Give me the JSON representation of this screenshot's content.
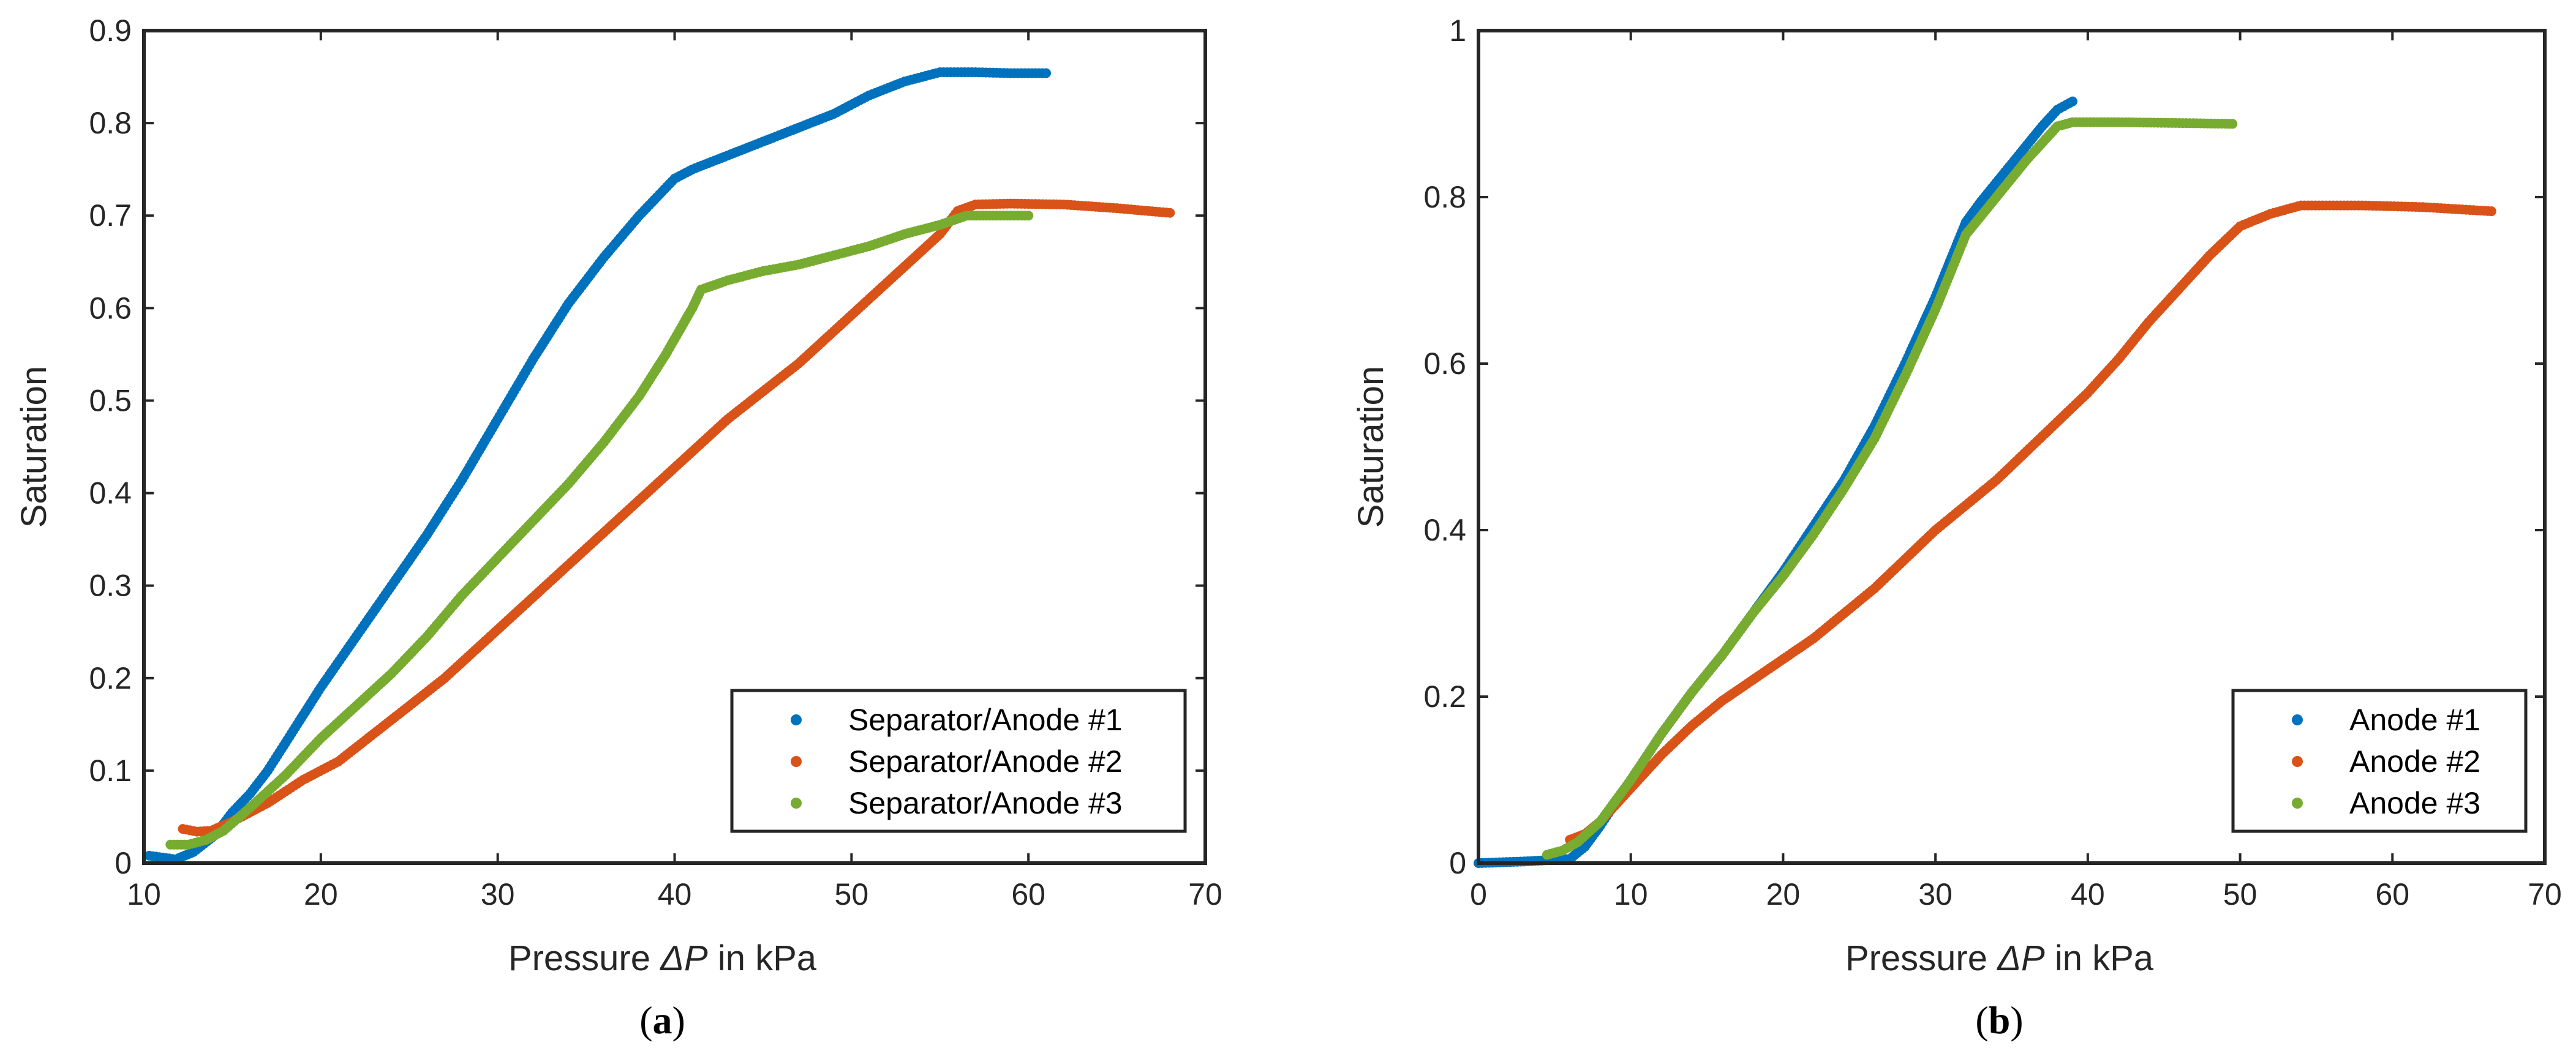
{
  "chart_data": [
    {
      "type": "scatter",
      "panel_label": "(a)",
      "panel_letter": "a",
      "xlabel_prefix": "Pressure ",
      "xlabel_symbol": "ΔP",
      "xlabel_suffix": " in kPa",
      "ylabel": "Saturation",
      "xlim": [
        10,
        70
      ],
      "ylim": [
        0,
        0.9
      ],
      "xticks": [
        10,
        20,
        30,
        40,
        50,
        60,
        70
      ],
      "yticks": [
        0,
        0.1,
        0.2,
        0.3,
        0.4,
        0.5,
        0.6,
        0.7,
        0.8,
        0.9
      ],
      "legend_position": "bottom-right",
      "series": [
        {
          "name": "Separator/Anode #1",
          "color": "#0072BD",
          "points": [
            [
              10.3,
              0.008
            ],
            [
              11.8,
              0.004
            ],
            [
              12.8,
              0.012
            ],
            [
              14.0,
              0.03
            ],
            [
              15.0,
              0.055
            ],
            [
              16.0,
              0.075
            ],
            [
              17.0,
              0.1
            ],
            [
              18.0,
              0.13
            ],
            [
              20.0,
              0.19
            ],
            [
              22.0,
              0.245
            ],
            [
              24.0,
              0.3
            ],
            [
              26.0,
              0.355
            ],
            [
              28.0,
              0.415
            ],
            [
              30.0,
              0.48
            ],
            [
              32.0,
              0.545
            ],
            [
              34.0,
              0.605
            ],
            [
              36.0,
              0.655
            ],
            [
              38.0,
              0.7
            ],
            [
              40.0,
              0.74
            ],
            [
              41.0,
              0.75
            ],
            [
              43.0,
              0.765
            ],
            [
              45.0,
              0.78
            ],
            [
              47.0,
              0.795
            ],
            [
              49.0,
              0.81
            ],
            [
              51.0,
              0.83
            ],
            [
              53.0,
              0.845
            ],
            [
              55.0,
              0.855
            ],
            [
              57.0,
              0.855
            ],
            [
              59.0,
              0.854
            ],
            [
              61.0,
              0.854
            ]
          ]
        },
        {
          "name": "Separator/Anode #2",
          "color": "#D95319",
          "points": [
            [
              12.2,
              0.037
            ],
            [
              13.0,
              0.034
            ],
            [
              13.8,
              0.035
            ],
            [
              15.0,
              0.045
            ],
            [
              17.0,
              0.065
            ],
            [
              19.0,
              0.09
            ],
            [
              21.0,
              0.11
            ],
            [
              23.0,
              0.14
            ],
            [
              25.0,
              0.17
            ],
            [
              27.0,
              0.2
            ],
            [
              29.0,
              0.235
            ],
            [
              31.0,
              0.27
            ],
            [
              33.0,
              0.305
            ],
            [
              35.0,
              0.34
            ],
            [
              37.0,
              0.375
            ],
            [
              39.0,
              0.41
            ],
            [
              41.0,
              0.445
            ],
            [
              43.0,
              0.48
            ],
            [
              45.0,
              0.51
            ],
            [
              47.0,
              0.54
            ],
            [
              49.0,
              0.575
            ],
            [
              51.0,
              0.61
            ],
            [
              53.0,
              0.645
            ],
            [
              55.0,
              0.68
            ],
            [
              56.0,
              0.705
            ],
            [
              57.0,
              0.712
            ],
            [
              59.0,
              0.713
            ],
            [
              62.0,
              0.712
            ],
            [
              65.0,
              0.708
            ],
            [
              68.0,
              0.703
            ]
          ]
        },
        {
          "name": "Separator/Anode #3",
          "color": "#77AC30",
          "points": [
            [
              11.5,
              0.02
            ],
            [
              12.5,
              0.02
            ],
            [
              13.5,
              0.025
            ],
            [
              14.5,
              0.035
            ],
            [
              16.0,
              0.06
            ],
            [
              18.0,
              0.095
            ],
            [
              20.0,
              0.135
            ],
            [
              22.0,
              0.17
            ],
            [
              24.0,
              0.205
            ],
            [
              26.0,
              0.245
            ],
            [
              28.0,
              0.29
            ],
            [
              30.0,
              0.33
            ],
            [
              32.0,
              0.37
            ],
            [
              34.0,
              0.41
            ],
            [
              36.0,
              0.455
            ],
            [
              38.0,
              0.505
            ],
            [
              39.5,
              0.55
            ],
            [
              41.0,
              0.6
            ],
            [
              41.5,
              0.62
            ],
            [
              43.0,
              0.63
            ],
            [
              45.0,
              0.64
            ],
            [
              47.0,
              0.647
            ],
            [
              49.0,
              0.657
            ],
            [
              51.0,
              0.667
            ],
            [
              53.0,
              0.68
            ],
            [
              55.0,
              0.69
            ],
            [
              56.5,
              0.7
            ],
            [
              58.0,
              0.7
            ],
            [
              60.0,
              0.7
            ]
          ]
        }
      ]
    },
    {
      "type": "scatter",
      "panel_label": "(b)",
      "panel_letter": "b",
      "xlabel_prefix": "Pressure ",
      "xlabel_symbol": "ΔP",
      "xlabel_suffix": " in kPa",
      "ylabel": "Saturation",
      "xlim": [
        0,
        70
      ],
      "ylim": [
        0,
        1
      ],
      "xticks": [
        0,
        10,
        20,
        30,
        40,
        50,
        60,
        70
      ],
      "yticks": [
        0,
        0.2,
        0.4,
        0.6,
        0.8,
        1
      ],
      "legend_position": "bottom-right",
      "series": [
        {
          "name": "Anode #1",
          "color": "#0072BD",
          "points": [
            [
              0.0,
              0.0
            ],
            [
              3.0,
              0.002
            ],
            [
              6.0,
              0.005
            ],
            [
              7.0,
              0.02
            ],
            [
              8.0,
              0.045
            ],
            [
              10.0,
              0.1
            ],
            [
              12.0,
              0.155
            ],
            [
              14.0,
              0.205
            ],
            [
              16.0,
              0.25
            ],
            [
              18.0,
              0.3
            ],
            [
              20.0,
              0.35
            ],
            [
              22.0,
              0.405
            ],
            [
              24.0,
              0.46
            ],
            [
              26.0,
              0.525
            ],
            [
              28.0,
              0.6
            ],
            [
              30.0,
              0.68
            ],
            [
              32.0,
              0.77
            ],
            [
              33.0,
              0.795
            ],
            [
              35.0,
              0.84
            ],
            [
              37.0,
              0.885
            ],
            [
              38.0,
              0.905
            ],
            [
              39.0,
              0.915
            ]
          ]
        },
        {
          "name": "Anode #2",
          "color": "#D95319",
          "points": [
            [
              6.0,
              0.028
            ],
            [
              7.0,
              0.035
            ],
            [
              8.0,
              0.05
            ],
            [
              10.0,
              0.09
            ],
            [
              12.0,
              0.13
            ],
            [
              14.0,
              0.165
            ],
            [
              16.0,
              0.195
            ],
            [
              18.0,
              0.22
            ],
            [
              20.0,
              0.245
            ],
            [
              22.0,
              0.27
            ],
            [
              24.0,
              0.3
            ],
            [
              26.0,
              0.33
            ],
            [
              28.0,
              0.365
            ],
            [
              30.0,
              0.4
            ],
            [
              32.0,
              0.43
            ],
            [
              34.0,
              0.46
            ],
            [
              36.0,
              0.495
            ],
            [
              38.0,
              0.53
            ],
            [
              40.0,
              0.565
            ],
            [
              42.0,
              0.605
            ],
            [
              44.0,
              0.65
            ],
            [
              46.0,
              0.69
            ],
            [
              48.0,
              0.73
            ],
            [
              50.0,
              0.765
            ],
            [
              52.0,
              0.78
            ],
            [
              54.0,
              0.79
            ],
            [
              58.0,
              0.79
            ],
            [
              62.0,
              0.788
            ],
            [
              66.5,
              0.783
            ]
          ]
        },
        {
          "name": "Anode #3",
          "color": "#77AC30",
          "points": [
            [
              4.5,
              0.01
            ],
            [
              5.5,
              0.015
            ],
            [
              6.5,
              0.025
            ],
            [
              8.0,
              0.05
            ],
            [
              10.0,
              0.1
            ],
            [
              12.0,
              0.155
            ],
            [
              14.0,
              0.205
            ],
            [
              16.0,
              0.25
            ],
            [
              18.0,
              0.3
            ],
            [
              20.0,
              0.345
            ],
            [
              22.0,
              0.395
            ],
            [
              24.0,
              0.45
            ],
            [
              26.0,
              0.51
            ],
            [
              28.0,
              0.585
            ],
            [
              30.0,
              0.665
            ],
            [
              32.0,
              0.755
            ],
            [
              34.0,
              0.8
            ],
            [
              36.0,
              0.845
            ],
            [
              38.0,
              0.885
            ],
            [
              39.0,
              0.89
            ],
            [
              42.0,
              0.89
            ],
            [
              46.0,
              0.889
            ],
            [
              49.5,
              0.888
            ]
          ]
        }
      ]
    }
  ]
}
